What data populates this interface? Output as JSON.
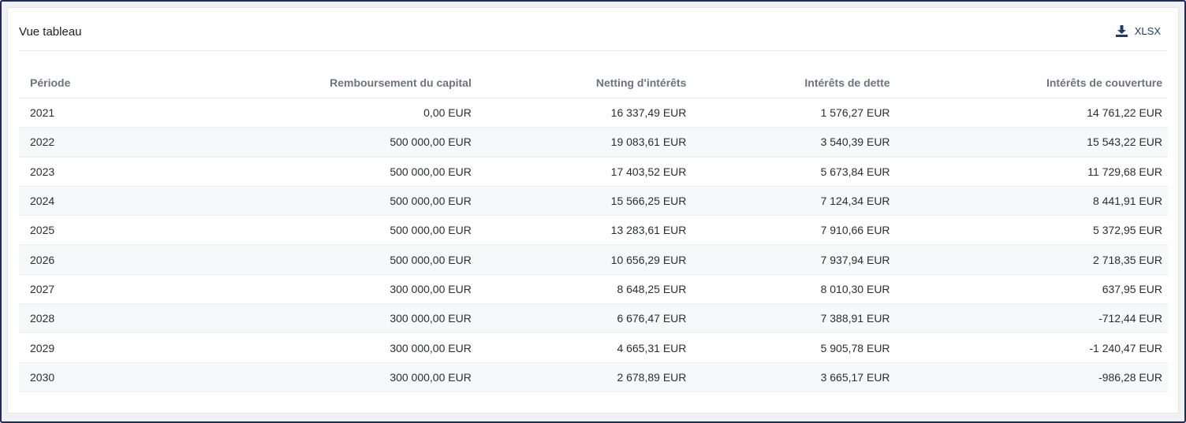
{
  "header": {
    "title": "Vue tableau",
    "export_label": "XLSX",
    "export_icon": "download-icon"
  },
  "table": {
    "columns": [
      "Période",
      "Remboursement du capital",
      "Netting d'intérêts",
      "Intérêts de dette",
      "Intérêts de couverture"
    ],
    "rows": [
      [
        "2021",
        "0,00 EUR",
        "16 337,49 EUR",
        "1 576,27 EUR",
        "14 761,22 EUR"
      ],
      [
        "2022",
        "500 000,00 EUR",
        "19 083,61 EUR",
        "3 540,39 EUR",
        "15 543,22 EUR"
      ],
      [
        "2023",
        "500 000,00 EUR",
        "17 403,52 EUR",
        "5 673,84 EUR",
        "11 729,68 EUR"
      ],
      [
        "2024",
        "500 000,00 EUR",
        "15 566,25 EUR",
        "7 124,34 EUR",
        "8 441,91 EUR"
      ],
      [
        "2025",
        "500 000,00 EUR",
        "13 283,61 EUR",
        "7 910,66 EUR",
        "5 372,95 EUR"
      ],
      [
        "2026",
        "500 000,00 EUR",
        "10 656,29 EUR",
        "7 937,94 EUR",
        "2 718,35 EUR"
      ],
      [
        "2027",
        "300 000,00 EUR",
        "8 648,25 EUR",
        "8 010,30 EUR",
        "637,95 EUR"
      ],
      [
        "2028",
        "300 000,00 EUR",
        "6 676,47 EUR",
        "7 388,91 EUR",
        "-712,44 EUR"
      ],
      [
        "2029",
        "300 000,00 EUR",
        "4 665,31 EUR",
        "5 905,78 EUR",
        "-1 240,47 EUR"
      ],
      [
        "2030",
        "300 000,00 EUR",
        "2 678,89 EUR",
        "3 665,17 EUR",
        "-986,28 EUR"
      ]
    ]
  }
}
